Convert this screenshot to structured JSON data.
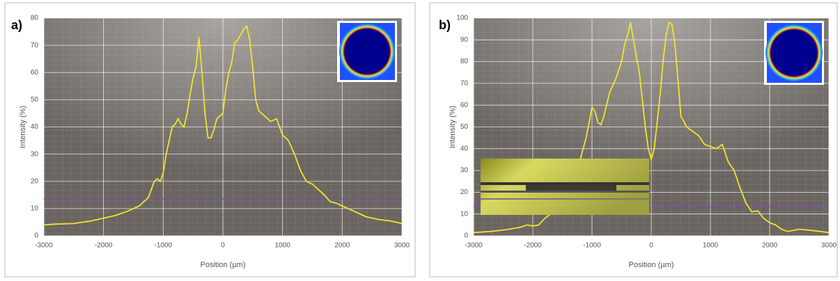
{
  "chart_data": [
    {
      "type": "line",
      "panel_label": "a)",
      "xlabel": "Position (µm)",
      "ylabel": "Intensity (%)",
      "x": [
        -3000,
        -2800,
        -2500,
        -2200,
        -2000,
        -1800,
        -1600,
        -1400,
        -1250,
        -1150,
        -1100,
        -1050,
        -1000,
        -950,
        -900,
        -850,
        -800,
        -750,
        -700,
        -650,
        -600,
        -550,
        -500,
        -450,
        -400,
        -350,
        -300,
        -250,
        -200,
        -150,
        -100,
        -50,
        0,
        50,
        100,
        150,
        200,
        250,
        300,
        350,
        400,
        450,
        500,
        550,
        600,
        700,
        800,
        900,
        1000,
        1100,
        1200,
        1300,
        1400,
        1500,
        1600,
        1700,
        1800,
        1900,
        2000,
        2200,
        2400,
        2600,
        2800,
        3000
      ],
      "series": [
        {
          "color": "#f2e52c",
          "values": [
            4,
            4.3,
            4.5,
            5.5,
            6.5,
            7.5,
            9,
            11,
            14,
            20,
            21,
            20,
            23,
            30,
            35,
            40,
            41,
            43,
            41,
            40,
            45,
            52,
            58,
            62,
            73,
            60,
            45,
            36,
            36,
            39,
            43,
            44,
            45,
            54,
            60,
            64,
            71,
            72,
            74,
            76,
            77,
            72,
            62,
            50,
            46,
            44,
            42,
            43,
            37,
            35,
            30,
            24,
            20,
            19,
            17,
            15,
            12.5,
            12,
            11,
            9,
            7,
            6,
            5.5,
            4.5
          ]
        }
      ],
      "xlim": [
        -3000,
        3000
      ],
      "ylim": [
        0,
        80
      ],
      "xticks": [
        -3000,
        -2000,
        -1000,
        0,
        1000,
        2000,
        3000
      ],
      "yticks": [
        0,
        10,
        20,
        30,
        40,
        50,
        60,
        70,
        80
      ],
      "grid": true,
      "reference_line": {
        "value": 13.5,
        "color": "#8a3fd0"
      }
    },
    {
      "type": "line",
      "panel_label": "b)",
      "xlabel": "Position (µm)",
      "ylabel": "Intensity (%)",
      "x": [
        -3000,
        -2700,
        -2400,
        -2200,
        -2100,
        -2000,
        -1900,
        -1800,
        -1700,
        -1500,
        -1300,
        -1200,
        -1100,
        -1000,
        -950,
        -900,
        -850,
        -800,
        -700,
        -600,
        -500,
        -450,
        -400,
        -350,
        -300,
        -250,
        -200,
        -150,
        -100,
        -50,
        0,
        50,
        100,
        150,
        200,
        250,
        300,
        350,
        400,
        450,
        500,
        600,
        700,
        800,
        900,
        1000,
        1100,
        1200,
        1300,
        1400,
        1500,
        1600,
        1700,
        1800,
        1900,
        2000,
        2100,
        2200,
        2300,
        2500,
        2700,
        3000
      ],
      "series": [
        {
          "color": "#f2e52c",
          "values": [
            1.5,
            2,
            3,
            4,
            5,
            4.5,
            5,
            8,
            10,
            20,
            30,
            35,
            45,
            59,
            57,
            52,
            51,
            55,
            66,
            72,
            80,
            88,
            92,
            98,
            90,
            82,
            75,
            62,
            50,
            40,
            35,
            40,
            52,
            65,
            80,
            92,
            98,
            97,
            88,
            72,
            55,
            50,
            48,
            46,
            42,
            41,
            40,
            42,
            34,
            30,
            22,
            15,
            11,
            11.5,
            8,
            6,
            5,
            3,
            2,
            3,
            2.5,
            1.5
          ]
        }
      ],
      "xlim": [
        -3000,
        3000
      ],
      "ylim": [
        0,
        100
      ],
      "xticks": [
        -3000,
        -2000,
        -1000,
        0,
        1000,
        2000,
        3000
      ],
      "yticks": [
        0,
        10,
        20,
        30,
        40,
        50,
        60,
        70,
        80,
        90,
        100
      ],
      "grid": true,
      "reference_line": {
        "value": 13.5,
        "color": "#8a3fd0"
      }
    }
  ]
}
